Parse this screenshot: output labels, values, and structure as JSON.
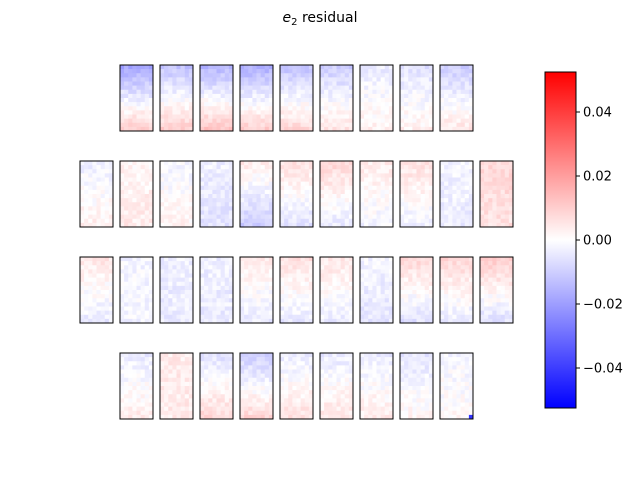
{
  "chart_data": {
    "type": "heatmap",
    "title_main": "e",
    "title_sub": "2",
    "title_rest": " residual",
    "colormap": "bwr",
    "color_range": [
      -0.0525,
      0.0525
    ],
    "colorbar_ticks": [
      {
        "value": 0.04,
        "label": "0.04"
      },
      {
        "value": 0.02,
        "label": "0.02"
      },
      {
        "value": 0.0,
        "label": "0.00"
      },
      {
        "value": -0.02,
        "label": "−0.02"
      },
      {
        "value": -0.04,
        "label": "−0.04"
      }
    ],
    "panel_grid": {
      "rows": 4,
      "cols": 11,
      "cells_x": 8,
      "cells_y": 16
    },
    "panel_layout": [
      [
        1,
        2,
        3,
        4,
        5,
        6,
        7,
        8,
        9
      ],
      [
        0,
        1,
        2,
        3,
        4,
        5,
        6,
        7,
        8,
        9,
        10
      ],
      [
        0,
        1,
        2,
        3,
        4,
        5,
        6,
        7,
        8,
        9,
        10
      ],
      [
        1,
        2,
        3,
        4,
        5,
        6,
        7,
        8,
        9
      ]
    ],
    "panel_gradients": [
      [
        {
          "top": -0.018,
          "bottom": 0.01
        },
        {
          "top": -0.012,
          "bottom": 0.01
        },
        {
          "top": -0.015,
          "bottom": 0.012
        },
        {
          "top": -0.016,
          "bottom": 0.01
        },
        {
          "top": -0.012,
          "bottom": 0.008
        },
        {
          "top": -0.01,
          "bottom": 0.006
        },
        {
          "top": -0.004,
          "bottom": 0.003
        },
        {
          "top": -0.006,
          "bottom": 0.003
        },
        {
          "top": -0.01,
          "bottom": 0.005
        }
      ],
      [
        {
          "top": -0.003,
          "bottom": 0.003
        },
        {
          "top": 0.002,
          "bottom": 0.004
        },
        {
          "top": -0.002,
          "bottom": 0.002
        },
        {
          "top": -0.003,
          "bottom": -0.006
        },
        {
          "top": 0.004,
          "bottom": -0.01
        },
        {
          "top": 0.006,
          "bottom": -0.006
        },
        {
          "top": 0.008,
          "bottom": -0.004
        },
        {
          "top": 0.004,
          "bottom": -0.002
        },
        {
          "top": 0.006,
          "bottom": -0.003
        },
        {
          "top": -0.002,
          "bottom": -0.004
        },
        {
          "top": 0.008,
          "bottom": 0.006
        }
      ],
      [
        {
          "top": 0.005,
          "bottom": -0.004
        },
        {
          "top": -0.002,
          "bottom": -0.002
        },
        {
          "top": -0.003,
          "bottom": -0.004
        },
        {
          "top": -0.003,
          "bottom": -0.004
        },
        {
          "top": 0.004,
          "bottom": -0.004
        },
        {
          "top": 0.006,
          "bottom": -0.004
        },
        {
          "top": 0.005,
          "bottom": -0.004
        },
        {
          "top": -0.002,
          "bottom": -0.005
        },
        {
          "top": 0.008,
          "bottom": -0.006
        },
        {
          "top": 0.008,
          "bottom": -0.004
        },
        {
          "top": 0.01,
          "bottom": -0.006
        }
      ],
      [
        {
          "top": -0.004,
          "bottom": 0.004
        },
        {
          "top": 0.004,
          "bottom": 0.004
        },
        {
          "top": -0.006,
          "bottom": 0.008
        },
        {
          "top": -0.01,
          "bottom": 0.008
        },
        {
          "top": -0.004,
          "bottom": 0.006
        },
        {
          "top": -0.004,
          "bottom": 0.005
        },
        {
          "top": -0.004,
          "bottom": 0.004
        },
        {
          "top": -0.005,
          "bottom": 0.002
        },
        {
          "top": -0.002,
          "bottom": 0.001
        }
      ]
    ],
    "outlier": {
      "row": 3,
      "panel": 8,
      "cell_x": 7,
      "cell_y": 15,
      "value": -0.042
    }
  }
}
